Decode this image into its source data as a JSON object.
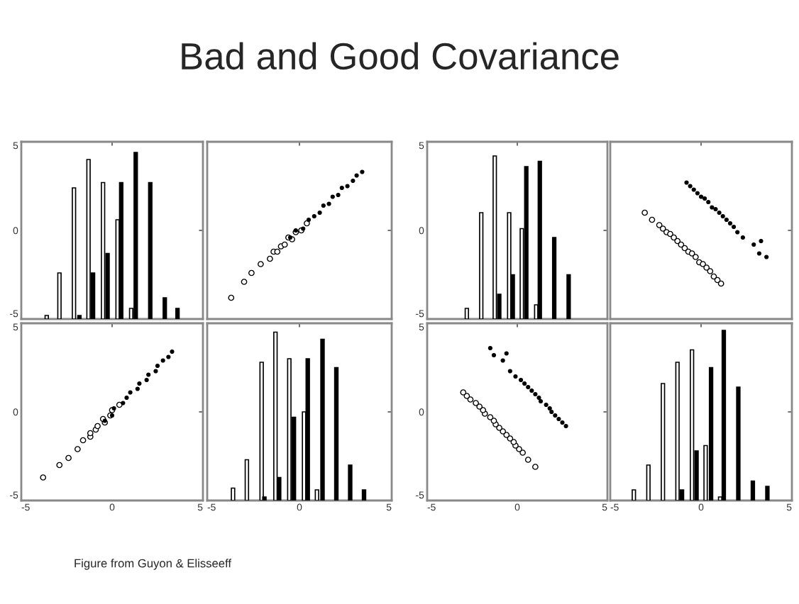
{
  "chart_data": [
    {
      "type": "bar",
      "title": "Bad and Good Covariance",
      "xlim": [
        -5,
        5
      ],
      "ylim": [
        -5,
        5
      ],
      "xticks": [
        -5,
        0,
        5
      ],
      "yticks": [
        -5,
        0,
        5
      ],
      "tick_labels": "y",
      "series": [
        {
          "color": "#ffffff",
          "x": [
            -3.6,
            -2.9,
            -2.1,
            -1.3,
            -0.5,
            0.3,
            1.05
          ],
          "base": [
            -5,
            -5,
            -5,
            -5,
            -5,
            -5,
            -5
          ],
          "values": [
            0.2,
            2.6,
            7.4,
            9.0,
            7.7,
            5.6,
            0.6
          ]
        },
        {
          "color": "#000000",
          "x": [
            -1.8,
            -1.05,
            -0.25,
            0.5,
            1.3,
            2.1,
            2.9,
            3.6
          ],
          "base": [
            -5,
            -5,
            -5,
            -5,
            -5,
            -5,
            -5,
            -5
          ],
          "values": [
            0.2,
            2.6,
            3.7,
            7.7,
            9.4,
            7.7,
            1.2,
            0.6
          ]
        }
      ]
    },
    {
      "type": "scatter",
      "xlim": [
        -5,
        5
      ],
      "ylim": [
        -5,
        5
      ],
      "xticks": [
        -5,
        0,
        5
      ],
      "yticks": [
        -5,
        0,
        5
      ],
      "tick_labels": false,
      "marker": "circle",
      "series": [
        {
          "color": "#ffffff",
          "x": [
            -3.7,
            -3.0,
            -2.6,
            -2.1,
            -1.6,
            -1.4,
            -1.2,
            -1.0,
            -0.8,
            -0.6,
            -0.4,
            -0.2,
            0.1,
            0.4
          ],
          "values": [
            -3.8,
            -2.9,
            -2.4,
            -1.9,
            -1.6,
            -1.2,
            -1.2,
            -0.9,
            -0.8,
            -0.4,
            -0.5,
            -0.1,
            0.0,
            0.4
          ]
        },
        {
          "color": "#000000",
          "x": [
            -0.5,
            -0.2,
            0.2,
            0.5,
            0.8,
            1.1,
            1.3,
            1.6,
            1.8,
            2.1,
            2.3,
            2.6,
            2.9,
            3.1,
            3.4
          ],
          "values": [
            -0.4,
            0.0,
            0.1,
            0.6,
            0.8,
            1.0,
            1.4,
            1.5,
            1.9,
            2.0,
            2.4,
            2.5,
            2.8,
            3.1,
            3.3
          ]
        }
      ]
    },
    {
      "type": "bar",
      "xlim": [
        -5,
        5
      ],
      "ylim": [
        -5,
        5
      ],
      "xticks": [
        -5,
        0,
        5
      ],
      "yticks": [
        -5,
        0,
        5
      ],
      "tick_labels": "y",
      "series": [
        {
          "color": "#ffffff",
          "x": [
            -2.8,
            -2.0,
            -1.25,
            -0.45,
            0.25,
            1.05
          ],
          "base": [
            -5,
            -5,
            -5,
            -5,
            -5,
            -5
          ],
          "values": [
            0.6,
            6.0,
            9.2,
            6.0,
            5.1,
            0.8
          ]
        },
        {
          "color": "#000000",
          "x": [
            -1.0,
            -0.25,
            0.5,
            1.25,
            2.05,
            2.85
          ],
          "base": [
            -5,
            -5,
            -5,
            -5,
            -5,
            -5
          ],
          "values": [
            1.4,
            2.5,
            8.6,
            8.9,
            4.6,
            2.5
          ]
        }
      ]
    },
    {
      "type": "scatter",
      "xlim": [
        -5,
        5
      ],
      "ylim": [
        -5,
        5
      ],
      "xticks": [
        -5,
        0,
        5
      ],
      "yticks": [
        -5,
        0,
        5
      ],
      "tick_labels": false,
      "marker": "circle",
      "series": [
        {
          "color": "#ffffff",
          "x": [
            -3.1,
            -2.7,
            -2.3,
            -2.1,
            -1.9,
            -1.7,
            -1.5,
            -1.3,
            -1.1,
            -0.9,
            -0.7,
            -0.5,
            -0.3,
            -0.1,
            0.1,
            0.3,
            0.5,
            0.7,
            0.9,
            1.1
          ],
          "values": [
            1.0,
            0.6,
            0.3,
            0.1,
            -0.1,
            -0.2,
            -0.4,
            -0.6,
            -0.8,
            -1.0,
            -1.2,
            -1.3,
            -1.5,
            -1.8,
            -1.9,
            -2.1,
            -2.3,
            -2.6,
            -2.8,
            -3.0
          ]
        },
        {
          "color": "#000000",
          "x": [
            -0.8,
            -0.6,
            -0.4,
            -0.2,
            0.0,
            0.2,
            0.4,
            0.6,
            0.8,
            1.0,
            1.2,
            1.4,
            1.6,
            1.8,
            2.0,
            2.3,
            2.9,
            3.2,
            3.3,
            3.6
          ],
          "values": [
            2.7,
            2.5,
            2.3,
            2.1,
            1.9,
            1.8,
            1.6,
            1.3,
            1.2,
            1.0,
            0.8,
            0.6,
            0.4,
            0.2,
            -0.1,
            -0.4,
            -0.8,
            -1.3,
            -0.6,
            -1.5
          ]
        }
      ]
    },
    {
      "type": "scatter",
      "xlim": [
        -5,
        5
      ],
      "ylim": [
        -5,
        5
      ],
      "xticks": [
        -5,
        0,
        5
      ],
      "yticks": [
        -5,
        0,
        5
      ],
      "marker": "circle",
      "series": [
        {
          "color": "#ffffff",
          "x": [
            -3.8,
            -2.9,
            -2.4,
            -1.9,
            -1.6,
            -1.2,
            -1.2,
            -0.9,
            -0.8,
            -0.4,
            -0.5,
            -0.1,
            0.0,
            0.4
          ],
          "values": [
            -3.7,
            -3.0,
            -2.6,
            -2.1,
            -1.6,
            -1.4,
            -1.2,
            -1.0,
            -0.8,
            -0.6,
            -0.4,
            -0.2,
            0.1,
            0.4
          ]
        },
        {
          "color": "#000000",
          "x": [
            -0.4,
            0.0,
            0.1,
            0.6,
            0.8,
            1.0,
            1.4,
            1.5,
            1.9,
            2.0,
            2.4,
            2.5,
            2.8,
            3.1,
            3.3
          ],
          "values": [
            -0.5,
            -0.2,
            0.2,
            0.5,
            0.8,
            1.1,
            1.3,
            1.6,
            1.8,
            2.1,
            2.3,
            2.6,
            2.9,
            3.1,
            3.4
          ]
        }
      ]
    },
    {
      "type": "bar",
      "xlim": [
        -5,
        5
      ],
      "ylim": [
        -5,
        5
      ],
      "xticks": [
        -5,
        0,
        5
      ],
      "yticks": [
        -5,
        0,
        5
      ],
      "tick_labels": "x",
      "series": [
        {
          "color": "#ffffff",
          "x": [
            -3.6,
            -2.85,
            -2.05,
            -1.3,
            -0.55,
            0.25,
            0.95
          ],
          "base": [
            -5,
            -5,
            -5,
            -5,
            -5,
            -5,
            -5
          ],
          "values": [
            0.7,
            2.3,
            7.8,
            9.5,
            8.0,
            5.0,
            0.6
          ]
        },
        {
          "color": "#000000",
          "x": [
            -1.9,
            -1.1,
            -0.3,
            0.45,
            1.25,
            2.0,
            2.75,
            3.5
          ],
          "base": [
            -5,
            -5,
            -5,
            -5,
            -5,
            -5,
            -5,
            -5
          ],
          "values": [
            0.2,
            1.3,
            4.7,
            8.0,
            9.1,
            7.5,
            2.0,
            0.6
          ]
        }
      ]
    },
    {
      "type": "scatter",
      "xlim": [
        -5,
        5
      ],
      "ylim": [
        -5,
        5
      ],
      "xticks": [
        -5,
        0,
        5
      ],
      "yticks": [
        -5,
        0,
        5
      ],
      "marker": "circle",
      "series": [
        {
          "color": "#ffffff",
          "x": [
            1.0,
            0.6,
            0.3,
            0.1,
            -0.1,
            -0.2,
            -0.4,
            -0.6,
            -0.8,
            -1.0,
            -1.2,
            -1.3,
            -1.5,
            -1.8,
            -1.9,
            -2.1,
            -2.3,
            -2.6,
            -2.8,
            -3.0
          ],
          "values": [
            -3.1,
            -2.7,
            -2.3,
            -2.1,
            -1.9,
            -1.7,
            -1.5,
            -1.3,
            -1.1,
            -0.9,
            -0.7,
            -0.5,
            -0.3,
            -0.1,
            0.1,
            0.3,
            0.5,
            0.7,
            0.9,
            1.1
          ]
        },
        {
          "color": "#000000",
          "x": [
            2.7,
            2.5,
            2.3,
            2.1,
            1.9,
            1.8,
            1.6,
            1.3,
            1.2,
            1.0,
            0.8,
            0.6,
            0.4,
            0.2,
            -0.1,
            -0.4,
            -0.8,
            -1.3,
            -0.6,
            -1.5
          ],
          "values": [
            -0.8,
            -0.6,
            -0.4,
            -0.2,
            0.0,
            0.2,
            0.4,
            0.6,
            0.8,
            1.0,
            1.2,
            1.4,
            1.6,
            1.8,
            2.0,
            2.3,
            2.9,
            3.2,
            3.3,
            3.6
          ]
        }
      ]
    },
    {
      "type": "bar",
      "xlim": [
        -5,
        5
      ],
      "ylim": [
        -5,
        5
      ],
      "xticks": [
        -5,
        0,
        5
      ],
      "yticks": [
        -5,
        0,
        5
      ],
      "tick_labels": "x",
      "annotations": [
        "Figure from Guyon & Elisseeff"
      ],
      "series": [
        {
          "color": "#ffffff",
          "x": [
            -3.7,
            -2.9,
            -2.1,
            -1.3,
            -0.5,
            0.25,
            1.05
          ],
          "base": [
            -5,
            -5,
            -5,
            -5,
            -5,
            -5,
            -5
          ],
          "values": [
            0.6,
            2.0,
            6.6,
            7.8,
            8.5,
            3.1,
            0.2
          ]
        },
        {
          "color": "#000000",
          "x": [
            -1.05,
            -0.25,
            0.55,
            1.25,
            2.05,
            2.85,
            3.65
          ],
          "base": [
            -5,
            -5,
            -5,
            -5,
            -5,
            -5,
            -5
          ],
          "values": [
            0.6,
            2.8,
            7.5,
            9.6,
            6.4,
            1.1,
            0.8
          ]
        }
      ]
    }
  ]
}
